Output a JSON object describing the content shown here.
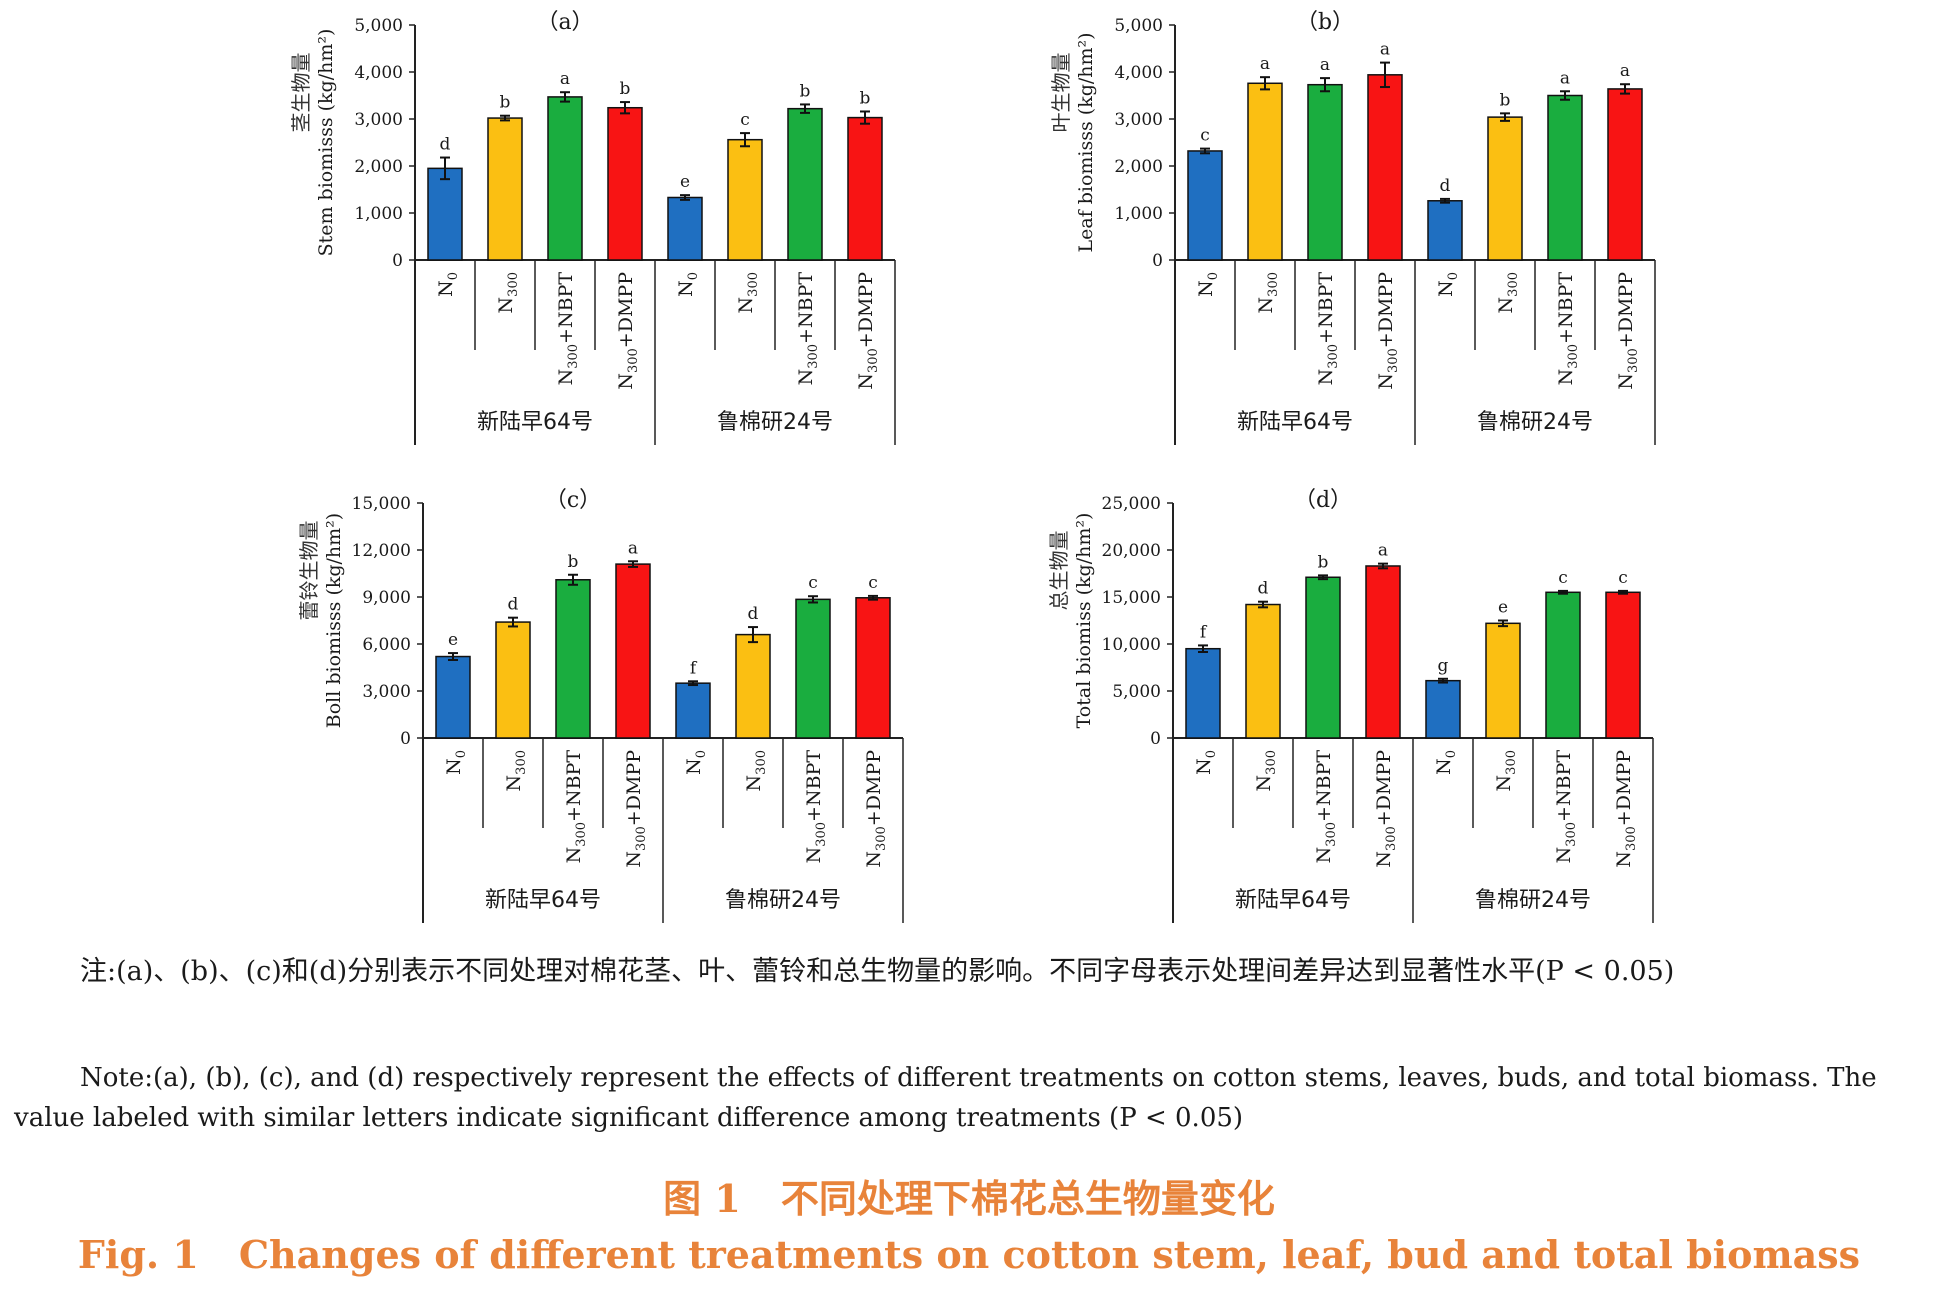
{
  "chart_data": [
    {
      "type": "bar",
      "title": "（a）",
      "ylabel_zh": "茎生物量",
      "ylabel_en": "Stem biomisss (kg/hm²)",
      "ylim": [
        0,
        5000
      ],
      "yticks": [
        "0",
        "1,000",
        "2,000",
        "3,000",
        "4,000",
        "5,000"
      ],
      "groups": [
        "新陆早64号",
        "鲁棉研24号"
      ],
      "categories": [
        "N0",
        "N300",
        "N300+NBPT",
        "N300+DMPP",
        "N0",
        "N300",
        "N300+NBPT",
        "N300+DMPP"
      ],
      "values": [
        1950,
        3020,
        3470,
        3240,
        1330,
        2560,
        3220,
        3030
      ],
      "errors": [
        230,
        50,
        100,
        120,
        50,
        140,
        90,
        130
      ],
      "letters": [
        "d",
        "b",
        "a",
        "b",
        "e",
        "c",
        "b",
        "b"
      ]
    },
    {
      "type": "bar",
      "title": "（b）",
      "ylabel_zh": "叶生物量",
      "ylabel_en": "Leaf biomisss (kg/hm²)",
      "ylim": [
        0,
        5000
      ],
      "yticks": [
        "0",
        "1,000",
        "2,000",
        "3,000",
        "4,000",
        "5,000"
      ],
      "groups": [
        "新陆早64号",
        "鲁棉研24号"
      ],
      "categories": [
        "N0",
        "N300",
        "N300+NBPT",
        "N300+DMPP",
        "N0",
        "N300",
        "N300+NBPT",
        "N300+DMPP"
      ],
      "values": [
        2320,
        3760,
        3730,
        3940,
        1260,
        3040,
        3500,
        3640
      ],
      "errors": [
        50,
        130,
        140,
        260,
        40,
        80,
        90,
        100
      ],
      "letters": [
        "c",
        "a",
        "a",
        "a",
        "d",
        "b",
        "a",
        "a"
      ]
    },
    {
      "type": "bar",
      "title": "（c）",
      "ylabel_zh": "蕾铃生物量",
      "ylabel_en": "Boll biomisss (kg/hm²)",
      "ylim": [
        0,
        15000
      ],
      "yticks": [
        "0",
        "3,000",
        "6,000",
        "9,000",
        "12,000",
        "15,000"
      ],
      "groups": [
        "新陆早64号",
        "鲁棉研24号"
      ],
      "categories": [
        "N0",
        "N300",
        "N300+NBPT",
        "N300+DMPP",
        "N0",
        "N300",
        "N300+NBPT",
        "N300+DMPP"
      ],
      "values": [
        5200,
        7400,
        10100,
        11100,
        3500,
        6600,
        8850,
        8950
      ],
      "errors": [
        220,
        280,
        320,
        180,
        120,
        480,
        200,
        120
      ],
      "letters": [
        "e",
        "d",
        "b",
        "a",
        "f",
        "d",
        "c",
        "c"
      ]
    },
    {
      "type": "bar",
      "title": "（d）",
      "ylabel_zh": "总生物量",
      "ylabel_en": "Total biomiss (kg/hm²)",
      "ylim": [
        0,
        25000
      ],
      "yticks": [
        "0",
        "5,000",
        "10,000",
        "15,000",
        "20,000",
        "25,000"
      ],
      "groups": [
        "新陆早64号",
        "鲁棉研24号"
      ],
      "categories": [
        "N0",
        "N300",
        "N300+NBPT",
        "N300+DMPP",
        "N0",
        "N300",
        "N300+NBPT",
        "N300+DMPP"
      ],
      "values": [
        9500,
        14200,
        17100,
        18300,
        6100,
        12200,
        15500,
        15500
      ],
      "errors": [
        350,
        300,
        200,
        250,
        200,
        300,
        150,
        150
      ],
      "letters": [
        "f",
        "d",
        "b",
        "a",
        "g",
        "e",
        "c",
        "c"
      ]
    }
  ],
  "colors": [
    "#1f6fc1",
    "#fbbf12",
    "#1aad3f",
    "#f81414"
  ],
  "note_zh": "注:(a)、(b)、(c)和(d)分别表示不同处理对棉花茎、叶、蕾铃和总生物量的影响。不同字母表示处理间差异达到显著性水平(P < 0.05)",
  "note_en": "Note:(a), (b), (c), and (d) respectively represent the effects of different treatments on cotton stems, leaves, buds, and total biomass. The value labeled with similar letters indicate significant difference among treatments (P < 0.05)",
  "caption_zh_num": "图 1",
  "caption_zh_text": "不同处理下棉花总生物量变化",
  "caption_en_num": "Fig. 1",
  "caption_en_text": "Changes of different treatments on cotton stem, leaf, bud and total biomass"
}
